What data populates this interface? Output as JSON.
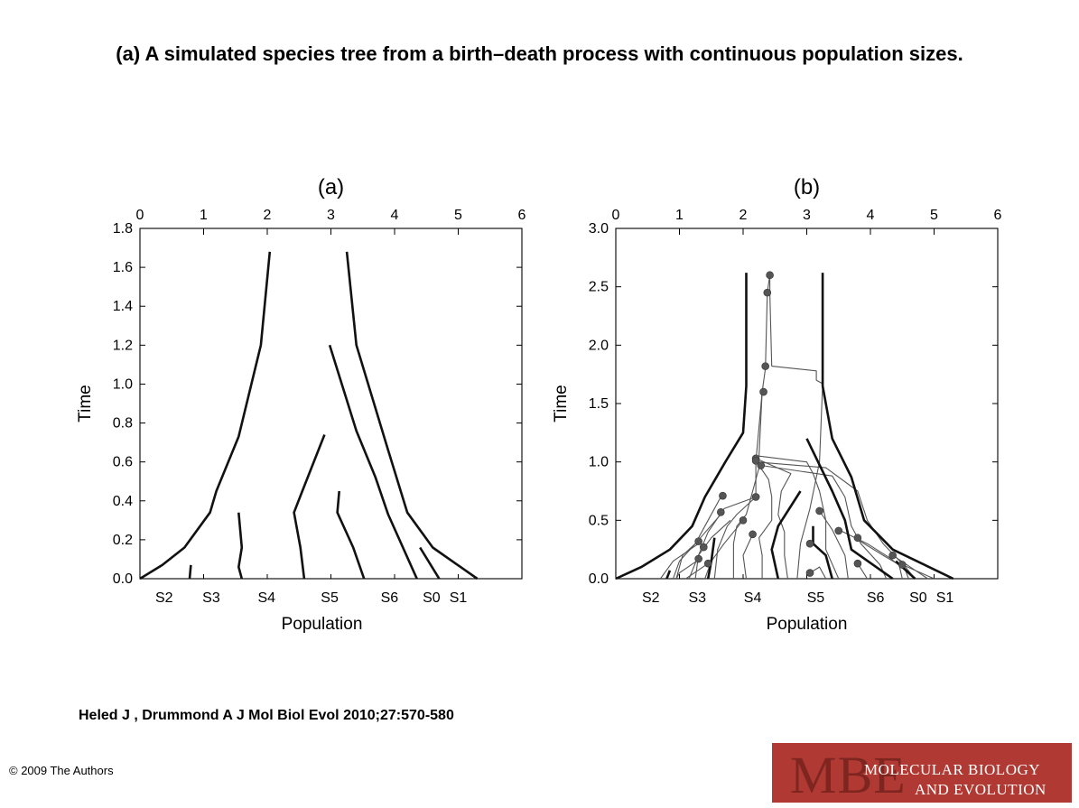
{
  "slide": {
    "title": "(a) A simulated species tree from a birth–death process with continuous population sizes.",
    "citation": "Heled J , Drummond A J Mol Biol Evol 2010;27:570-580",
    "copyright": "© 2009 The Authors",
    "logo": {
      "letters": "MBE",
      "line1": "MOLECULAR BIOLOGY",
      "line2": "AND EVOLUTION",
      "color": "#b03a33"
    }
  },
  "chart_data": [
    {
      "type": "line",
      "panel_label": "(a)",
      "xlabel": "Population",
      "ylabel": "Time",
      "xlim": [
        0,
        6
      ],
      "ylim": [
        0,
        1.8
      ],
      "x_ticks": [
        0,
        1,
        2,
        3,
        4,
        5,
        6
      ],
      "y_ticks": [
        "0.0",
        "0.2",
        "0.4",
        "0.6",
        "0.8",
        "1.0",
        "1.2",
        "1.4",
        "1.6",
        "1.8"
      ],
      "species_labels": [
        {
          "label": "S2",
          "x": 0.38
        },
        {
          "label": "S3",
          "x": 1.12
        },
        {
          "label": "S4",
          "x": 1.99
        },
        {
          "label": "S5",
          "x": 2.98
        },
        {
          "label": "S6",
          "x": 3.92
        },
        {
          "label": "S0",
          "x": 4.58
        },
        {
          "label": "S1",
          "x": 5.0
        }
      ],
      "lines": [
        {
          "width": 2.6,
          "points": [
            [
              0,
              0
            ],
            [
              0.35,
              0.07
            ],
            [
              0.7,
              0.16
            ],
            [
              1.1,
              0.34
            ],
            [
              1.2,
              0.45
            ],
            [
              1.55,
              0.73
            ],
            [
              1.9,
              1.2
            ],
            [
              2.04,
              1.68
            ]
          ]
        },
        {
          "width": 2.6,
          "points": [
            [
              3.25,
              1.68
            ],
            [
              3.4,
              1.2
            ],
            [
              3.65,
              0.93
            ],
            [
              3.9,
              0.66
            ],
            [
              4.2,
              0.34
            ],
            [
              4.6,
              0.16
            ],
            [
              5.3,
              0
            ]
          ]
        },
        {
          "width": 2.6,
          "points": [
            [
              2.98,
              1.2
            ],
            [
              3.4,
              0.76
            ],
            [
              3.7,
              0.52
            ],
            [
              3.9,
              0.33
            ],
            [
              4.35,
              0
            ]
          ]
        },
        {
          "width": 2.6,
          "points": [
            [
              2.9,
              0.74
            ],
            [
              2.55,
              0.45
            ],
            [
              2.42,
              0.34
            ],
            [
              2.52,
              0.16
            ],
            [
              2.58,
              0
            ]
          ]
        },
        {
          "width": 2.6,
          "points": [
            [
              3.13,
              0.45
            ],
            [
              3.1,
              0.34
            ],
            [
              3.35,
              0.16
            ],
            [
              3.52,
              0
            ]
          ]
        },
        {
          "width": 2.6,
          "points": [
            [
              1.55,
              0.34
            ],
            [
              1.6,
              0.16
            ],
            [
              1.55,
              0.06
            ],
            [
              1.6,
              0
            ]
          ]
        },
        {
          "width": 2.6,
          "points": [
            [
              0.8,
              0.07
            ],
            [
              0.78,
              0
            ]
          ]
        },
        {
          "width": 2.6,
          "points": [
            [
              4.4,
              0.16
            ],
            [
              4.7,
              0
            ]
          ]
        }
      ]
    },
    {
      "type": "line",
      "panel_label": "(b)",
      "xlabel": "Population",
      "ylabel": "Time",
      "xlim": [
        0,
        6
      ],
      "ylim": [
        0,
        3.0
      ],
      "x_ticks": [
        0,
        1,
        2,
        3,
        4,
        5,
        6
      ],
      "y_ticks": [
        "0.0",
        "0.5",
        "1.0",
        "1.5",
        "2.0",
        "2.5",
        "3.0"
      ],
      "species_labels": [
        {
          "label": "S2",
          "x": 0.55
        },
        {
          "label": "S3",
          "x": 1.28
        },
        {
          "label": "S4",
          "x": 2.15
        },
        {
          "label": "S5",
          "x": 3.14
        },
        {
          "label": "S6",
          "x": 4.08
        },
        {
          "label": "S0",
          "x": 4.75
        },
        {
          "label": "S1",
          "x": 5.17
        }
      ],
      "thick_lines": [
        {
          "points": [
            [
              0,
              0
            ],
            [
              0.4,
              0.1
            ],
            [
              0.85,
              0.25
            ],
            [
              1.2,
              0.45
            ],
            [
              1.4,
              0.7
            ],
            [
              1.72,
              1.0
            ],
            [
              2.0,
              1.25
            ],
            [
              2.05,
              1.65
            ],
            [
              2.05,
              2.62
            ]
          ]
        },
        {
          "points": [
            [
              3.25,
              2.62
            ],
            [
              3.25,
              1.65
            ],
            [
              3.4,
              1.2
            ],
            [
              3.7,
              0.87
            ],
            [
              3.9,
              0.5
            ],
            [
              4.35,
              0.25
            ],
            [
              5.3,
              0
            ]
          ]
        },
        {
          "points": [
            [
              3.0,
              1.2
            ],
            [
              3.4,
              0.75
            ],
            [
              3.6,
              0.5
            ],
            [
              3.7,
              0.25
            ],
            [
              4.35,
              0
            ]
          ]
        },
        {
          "points": [
            [
              2.9,
              0.75
            ],
            [
              2.55,
              0.45
            ],
            [
              2.45,
              0.25
            ],
            [
              2.55,
              0
            ]
          ]
        },
        {
          "points": [
            [
              3.1,
              0.45
            ],
            [
              3.1,
              0.3
            ],
            [
              3.3,
              0.2
            ],
            [
              3.4,
              0
            ]
          ]
        },
        {
          "points": [
            [
              1.55,
              0.35
            ],
            [
              1.5,
              0.15
            ],
            [
              1.45,
              0
            ]
          ]
        },
        {
          "points": [
            [
              0.85,
              0.07
            ],
            [
              0.8,
              0
            ]
          ]
        },
        {
          "points": [
            [
              4.4,
              0.15
            ],
            [
              4.7,
              0
            ]
          ]
        }
      ],
      "thin_lines": [
        {
          "points": [
            [
              2.42,
              2.6
            ],
            [
              2.38,
              2.45
            ],
            [
              2.35,
              1.8
            ],
            [
              2.3,
              1.6
            ],
            [
              2.2,
              1.0
            ],
            [
              2.2,
              0.7
            ],
            [
              1.9,
              0.55
            ],
            [
              1.75,
              0.45
            ],
            [
              1.6,
              0.25
            ],
            [
              1.55,
              0
            ]
          ]
        },
        {
          "points": [
            [
              2.42,
              2.6
            ],
            [
              2.42,
              2.45
            ],
            [
              2.45,
              1.82
            ],
            [
              3.15,
              1.78
            ],
            [
              3.15,
              1.7
            ],
            [
              3.25,
              1.67
            ],
            [
              3.2,
              1.0
            ],
            [
              3.05,
              0.6
            ],
            [
              2.9,
              0.3
            ],
            [
              2.85,
              0
            ]
          ]
        },
        {
          "points": [
            [
              2.3,
              1.6
            ],
            [
              2.25,
              1.05
            ],
            [
              3.0,
              1.0
            ],
            [
              3.1,
              0.9
            ],
            [
              3.2,
              0.75
            ],
            [
              3.3,
              0.5
            ],
            [
              3.3,
              0.25
            ],
            [
              3.5,
              0
            ]
          ]
        },
        {
          "points": [
            [
              2.2,
              1.0
            ],
            [
              3.3,
              0.95
            ],
            [
              3.8,
              0.75
            ],
            [
              3.95,
              0.5
            ],
            [
              4.2,
              0.3
            ],
            [
              4.55,
              0.1
            ],
            [
              4.7,
              0
            ]
          ]
        },
        {
          "points": [
            [
              2.25,
              0.95
            ],
            [
              2.15,
              0.75
            ],
            [
              2.05,
              0.55
            ],
            [
              1.9,
              0.45
            ],
            [
              1.85,
              0.3
            ],
            [
              1.85,
              0
            ]
          ]
        },
        {
          "points": [
            [
              2.28,
              0.97
            ],
            [
              3.4,
              0.88
            ],
            [
              3.6,
              0.7
            ],
            [
              3.7,
              0.45
            ],
            [
              3.85,
              0.3
            ],
            [
              4.15,
              0.12
            ],
            [
              4.25,
              0
            ]
          ]
        },
        {
          "points": [
            [
              2.2,
              1.01
            ],
            [
              2.4,
              0.85
            ],
            [
              2.45,
              0.7
            ],
            [
              2.45,
              0.5
            ],
            [
              2.25,
              0.35
            ],
            [
              2.3,
              0.2
            ],
            [
              2.3,
              0
            ]
          ]
        },
        {
          "points": [
            [
              2.2,
              1.03
            ],
            [
              2.75,
              0.9
            ],
            [
              2.6,
              0.75
            ],
            [
              2.55,
              0.55
            ],
            [
              2.65,
              0.4
            ],
            [
              2.65,
              0.2
            ],
            [
              2.7,
              0
            ]
          ]
        },
        {
          "points": [
            [
              1.8,
              0.5
            ],
            [
              1.5,
              0.35
            ],
            [
              1.3,
              0.2
            ],
            [
              1.15,
              0
            ]
          ]
        },
        {
          "points": [
            [
              1.65,
              0.7
            ],
            [
              1.45,
              0.5
            ],
            [
              1.25,
              0.3
            ],
            [
              1.0,
              0.15
            ],
            [
              0.9,
              0
            ]
          ]
        },
        {
          "points": [
            [
              1.68,
              0.57
            ],
            [
              1.25,
              0.3
            ],
            [
              1.05,
              0.2
            ],
            [
              0.95,
              0
            ]
          ]
        },
        {
          "points": [
            [
              2.2,
              0.7
            ],
            [
              1.7,
              0.6
            ],
            [
              1.45,
              0.4
            ],
            [
              1.3,
              0.2
            ],
            [
              1.25,
              0
            ]
          ]
        },
        {
          "points": [
            [
              2.0,
              0.5
            ],
            [
              1.7,
              0.3
            ],
            [
              1.5,
              0.15
            ],
            [
              1.4,
              0
            ]
          ]
        },
        {
          "points": [
            [
              2.15,
              0.38
            ],
            [
              2.0,
              0.2
            ],
            [
              2.05,
              0
            ]
          ]
        },
        {
          "points": [
            [
              3.2,
              0.58
            ],
            [
              3.4,
              0.42
            ],
            [
              3.6,
              0.2
            ],
            [
              3.65,
              0
            ]
          ]
        },
        {
          "points": [
            [
              3.05,
              0.05
            ],
            [
              3.2,
              0.1
            ],
            [
              3.3,
              0
            ]
          ]
        },
        {
          "points": [
            [
              3.75,
              0.35
            ],
            [
              4.2,
              0.2
            ],
            [
              4.45,
              0.12
            ],
            [
              4.5,
              0
            ]
          ]
        },
        {
          "points": [
            [
              3.8,
              0.13
            ],
            [
              3.95,
              0
            ]
          ]
        },
        {
          "points": [
            [
              3.5,
              0.42
            ],
            [
              3.95,
              0.3
            ],
            [
              4.3,
              0.18
            ],
            [
              4.55,
              0.07
            ],
            [
              4.6,
              0
            ]
          ]
        },
        {
          "points": [
            [
              4.35,
              0.2
            ],
            [
              4.9,
              0
            ]
          ]
        },
        {
          "points": [
            [
              4.5,
              0.12
            ],
            [
              5.0,
              0
            ]
          ]
        },
        {
          "points": [
            [
              1.3,
              0.3
            ],
            [
              0.9,
              0.15
            ],
            [
              0.7,
              0
            ]
          ]
        },
        {
          "points": [
            [
              1.35,
              0.18
            ],
            [
              1.0,
              0.05
            ],
            [
              0.95,
              0
            ]
          ]
        },
        {
          "points": [
            [
              1.45,
              0.13
            ],
            [
              1.1,
              0
            ]
          ]
        }
      ],
      "coalescent_points": [
        [
          2.42,
          2.6
        ],
        [
          2.38,
          2.45
        ],
        [
          2.35,
          1.82
        ],
        [
          2.32,
          1.6
        ],
        [
          2.2,
          1.03
        ],
        [
          2.2,
          1.01
        ],
        [
          2.28,
          0.97
        ],
        [
          1.68,
          0.71
        ],
        [
          2.2,
          0.7
        ],
        [
          1.65,
          0.57
        ],
        [
          2.0,
          0.5
        ],
        [
          2.15,
          0.38
        ],
        [
          3.2,
          0.58
        ],
        [
          3.05,
          0.3
        ],
        [
          3.05,
          0.05
        ],
        [
          3.5,
          0.41
        ],
        [
          3.8,
          0.35
        ],
        [
          3.8,
          0.13
        ],
        [
          4.35,
          0.2
        ],
        [
          4.5,
          0.12
        ],
        [
          1.3,
          0.32
        ],
        [
          1.38,
          0.27
        ],
        [
          1.3,
          0.17
        ],
        [
          1.45,
          0.13
        ]
      ]
    }
  ]
}
